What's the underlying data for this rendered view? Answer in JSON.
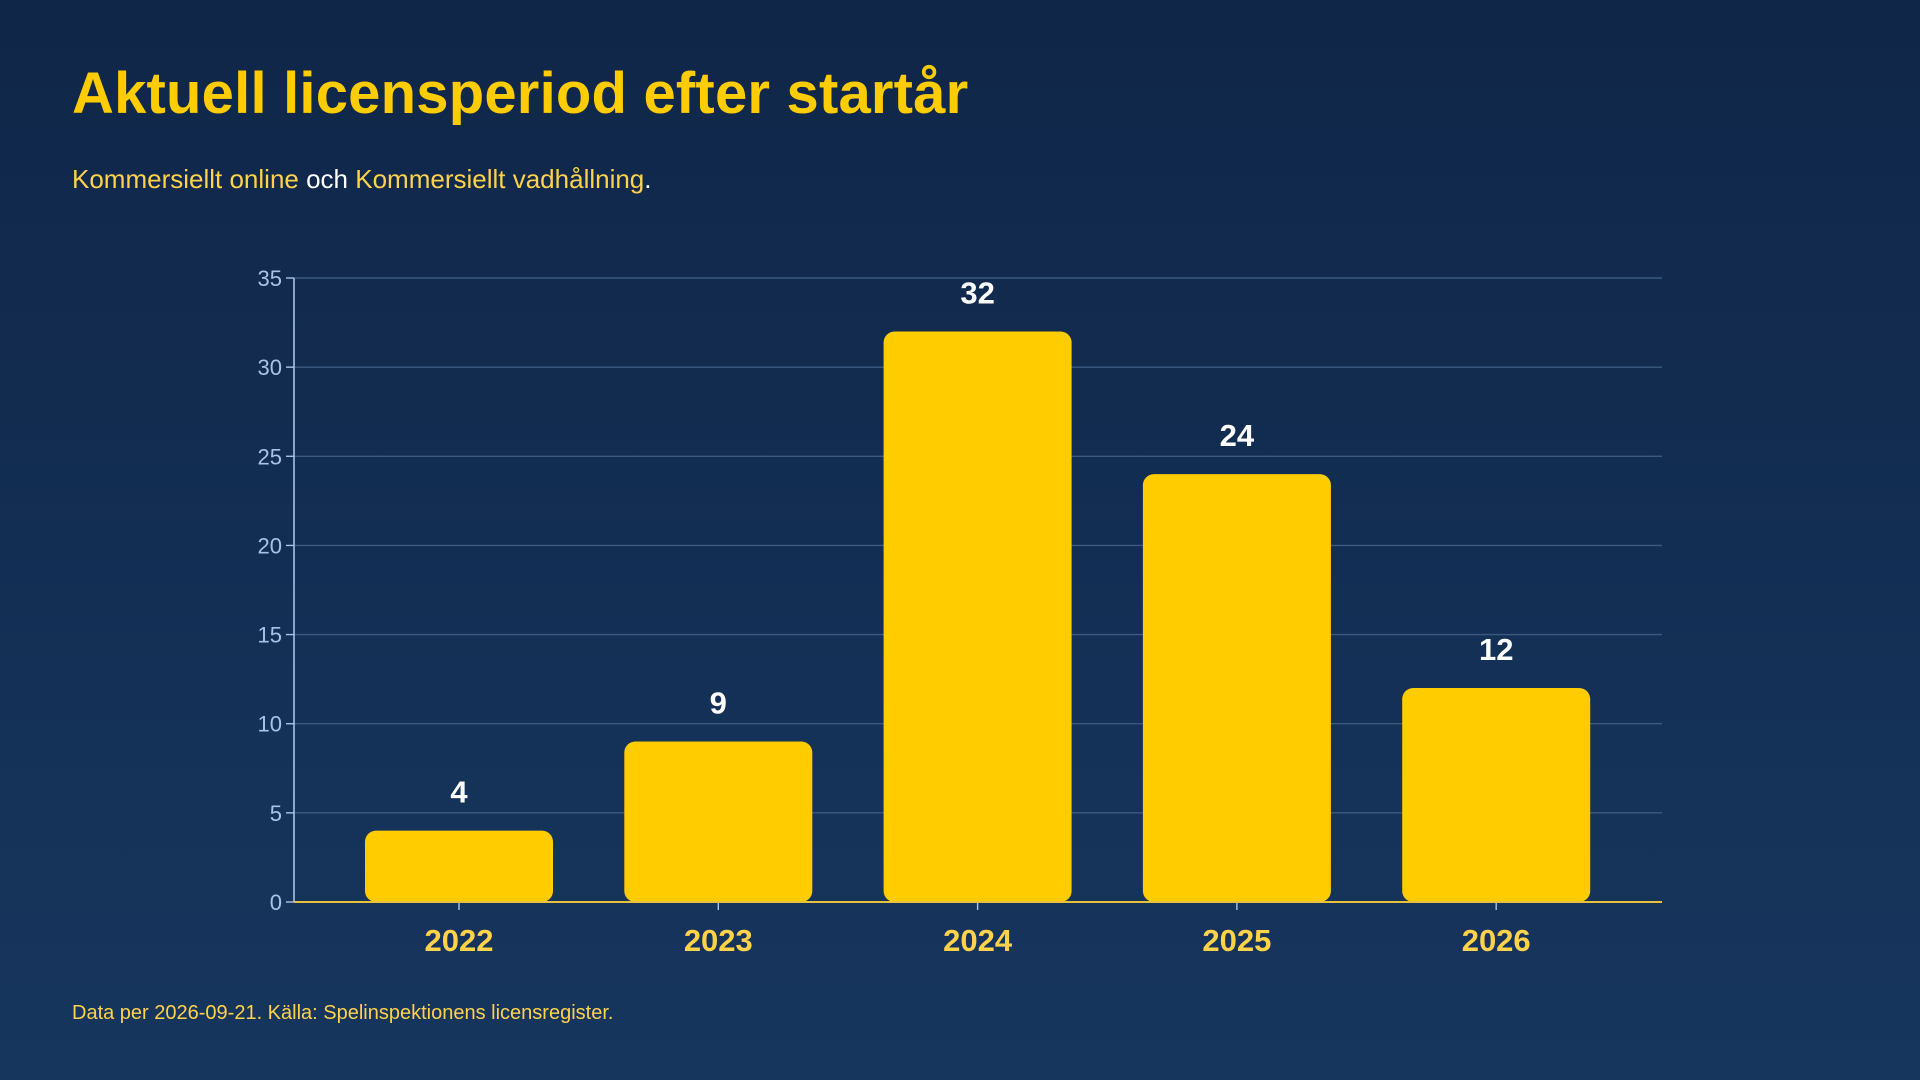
{
  "title": "Aktuell licensperiod efter startår",
  "subtitle": {
    "part1": "Kommersiellt online",
    "part2": " och ",
    "part3": "Kommersiellt vadhållning",
    "part4": "."
  },
  "footer": "Data per 2026-09-21. Källa: Spelinspektionens licensregister.",
  "colors": {
    "bar": "#ffcc00",
    "axis_text": "#a9c3e6",
    "category_text": "#ffd24a",
    "value_label": "#ffffff",
    "gridline": "#3b5a80",
    "baseline": "#e8c33a"
  },
  "chart_data": {
    "type": "bar",
    "categories": [
      "2022",
      "2023",
      "2024",
      "2025",
      "2026"
    ],
    "values": [
      4,
      9,
      32,
      24,
      12
    ],
    "value_labels": [
      "4",
      "9",
      "32",
      "24",
      "12"
    ],
    "ylim": [
      0,
      35
    ],
    "yticks": [
      0,
      5,
      10,
      15,
      20,
      25,
      30,
      35
    ],
    "ytick_labels": [
      "0",
      "5",
      "10",
      "15",
      "20",
      "25",
      "30",
      "35"
    ],
    "grid": true,
    "legend": "none"
  }
}
